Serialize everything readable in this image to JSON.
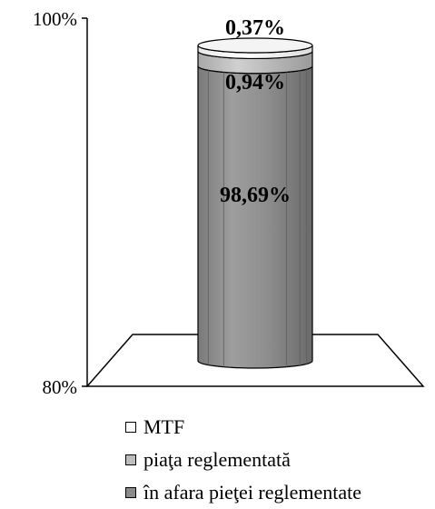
{
  "chart_data": {
    "type": "stacked-bar-3d",
    "title": "",
    "xlabel": "",
    "ylabel": "",
    "ylim": [
      80,
      100
    ],
    "yticks": [
      {
        "value": 100,
        "label": "100%"
      },
      {
        "value": 80,
        "label": "80%"
      }
    ],
    "series": [
      {
        "name": "în afara pieţei reglementate",
        "value": 98.69,
        "label": "98,69%",
        "color": "#8c8c8c"
      },
      {
        "name": "piaţa reglementată",
        "value": 0.94,
        "label": "0,94%",
        "color": "#bdbdbd"
      },
      {
        "name": "MTF",
        "value": 0.37,
        "label": "0,37%",
        "color": "#ffffff"
      }
    ],
    "legend_position": "bottom"
  }
}
